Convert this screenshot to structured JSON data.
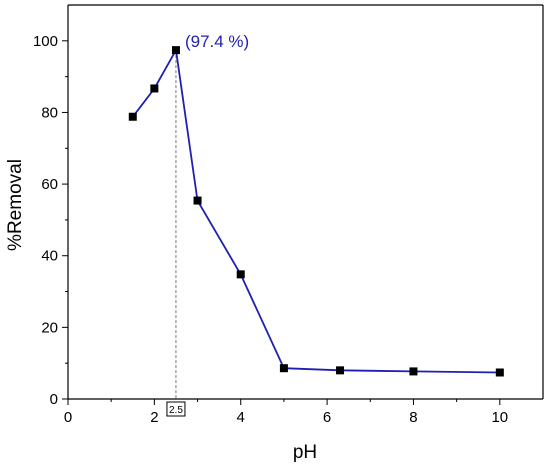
{
  "chart_data": {
    "type": "line",
    "title": "",
    "xlabel": "pH",
    "ylabel": "%Removal",
    "xlim": [
      0,
      11
    ],
    "ylim": [
      0,
      110
    ],
    "x_ticks": [
      0,
      2,
      4,
      6,
      8,
      10
    ],
    "y_ticks": [
      0,
      20,
      40,
      60,
      80,
      100
    ],
    "grid": false,
    "series": [
      {
        "x": [
          1.5,
          2.0,
          2.5,
          3.0,
          4.0,
          5.0,
          6.3,
          8.0,
          10.0
        ],
        "y": [
          78.8,
          86.7,
          97.4,
          55.4,
          34.8,
          8.6,
          8.0,
          7.7,
          7.4
        ],
        "line_color": "#1f1fb4",
        "marker": "square",
        "marker_color": "#000000"
      }
    ],
    "annotations": [
      {
        "text": "(97.4 %)",
        "x": 2.5,
        "y": 97.4,
        "color": "#1f1fb4"
      }
    ],
    "reference_line": {
      "x": 2.5,
      "label": "2.5"
    }
  }
}
